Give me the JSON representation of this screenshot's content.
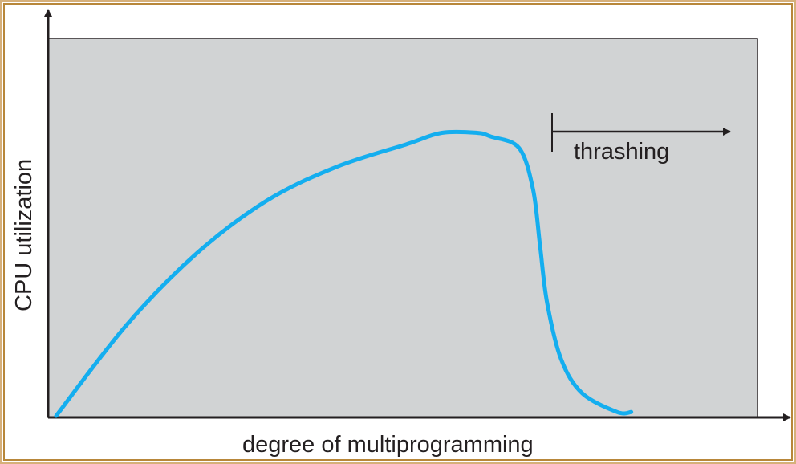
{
  "frame_colors": {
    "outer_border": "#c9a06a",
    "inner_border": "#b8873a",
    "plot_background": "#d1d3d4",
    "axis": "#231f20",
    "curve": "#14aeef",
    "text": "#231f20"
  },
  "chart_data": {
    "type": "line",
    "title": "",
    "xlabel": "degree of multiprogramming",
    "ylabel": "CPU utilization",
    "grid": false,
    "legend": "none",
    "series": [
      {
        "values_description_free": true,
        "x": [
          0.0,
          0.1,
          0.2,
          0.3,
          0.4,
          0.5,
          0.55,
          0.6,
          0.62,
          0.66,
          0.68,
          0.69,
          0.7,
          0.72,
          0.75,
          0.8,
          0.82
        ],
        "y": [
          0.0,
          0.24,
          0.43,
          0.57,
          0.66,
          0.72,
          0.75,
          0.75,
          0.74,
          0.71,
          0.6,
          0.45,
          0.3,
          0.15,
          0.06,
          0.01,
          0.01
        ]
      }
    ],
    "annotations": [
      {
        "text": "thrashing",
        "arrow_from_x": 0.71,
        "arrow_to_x": 0.96,
        "y": 0.88
      }
    ]
  }
}
